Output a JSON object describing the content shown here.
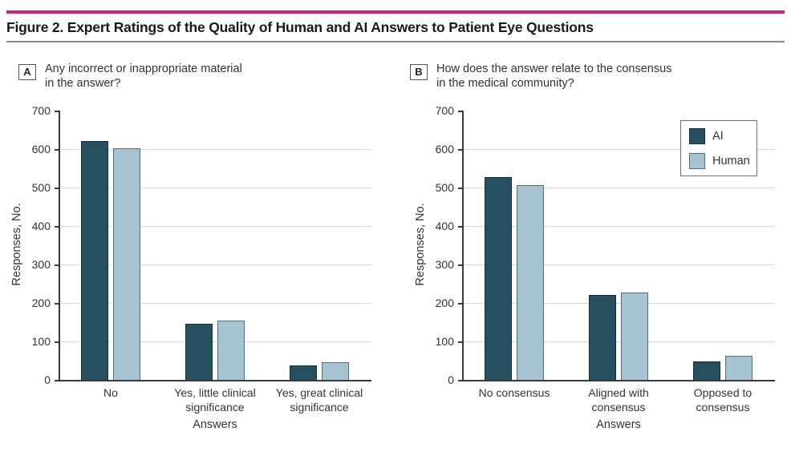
{
  "figure": {
    "title": "Figure 2. Expert Ratings of the Quality of Human and AI Answers to Patient Eye Questions"
  },
  "colors": {
    "accent_rule": "#da1a78",
    "ai": "#26505f",
    "ai_border": "#152f3a",
    "human": "#a5c3d0",
    "human_border": "#4f7081",
    "grid": "#d9d9d9",
    "axis": "#3a3a3a",
    "text": "#333333"
  },
  "chart_data": [
    {
      "type": "bar",
      "panel_label": "A",
      "question": "Any incorrect or inappropriate material\nin the answer?",
      "categories": [
        "No",
        "Yes, little clinical\nsignificance",
        "Yes, great clinical\nsignificance"
      ],
      "series": [
        {
          "name": "AI",
          "values": [
            620,
            145,
            38
          ]
        },
        {
          "name": "Human",
          "values": [
            603,
            155,
            45
          ]
        }
      ],
      "xlabel": "Answers",
      "ylabel": "Responses, No.",
      "ylim": [
        0,
        700
      ],
      "ytick_step": 100,
      "grid": true,
      "legend": false
    },
    {
      "type": "bar",
      "panel_label": "B",
      "question": "How does the answer relate to the consensus\nin the medical community?",
      "categories": [
        "No consensus",
        "Aligned with\nconsensus",
        "Opposed to\nconsensus"
      ],
      "series": [
        {
          "name": "AI",
          "values": [
            527,
            220,
            48
          ]
        },
        {
          "name": "Human",
          "values": [
            506,
            228,
            62
          ]
        }
      ],
      "xlabel": "Answers",
      "ylabel": "Responses, No.",
      "ylim": [
        0,
        700
      ],
      "ytick_step": 100,
      "grid": true,
      "legend": true,
      "legend_position": "top-right"
    }
  ]
}
